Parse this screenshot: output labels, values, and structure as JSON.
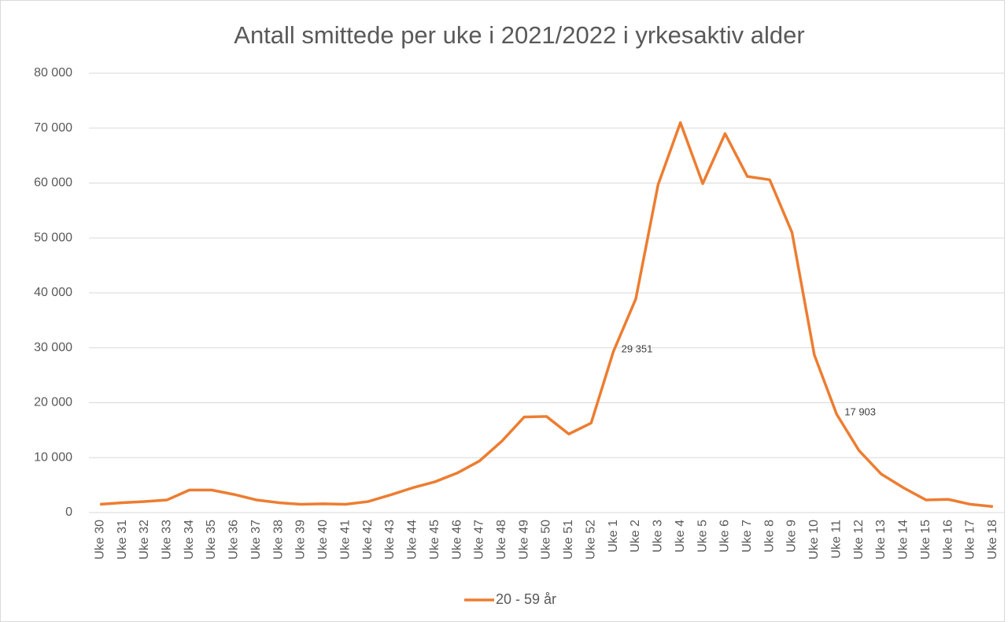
{
  "chart_data": {
    "type": "line",
    "title": "Antall smittede per uke i 2021/2022 i yrkesaktiv alder",
    "categories": [
      "Uke 30",
      "Uke 31",
      "Uke 32",
      "Uke 33",
      "Uke 34",
      "Uke 35",
      "Uke 36",
      "Uke 37",
      "Uke 38",
      "Uke 39",
      "Uke 40",
      "Uke 41",
      "Uke 42",
      "Uke 43",
      "Uke 44",
      "Uke 45",
      "Uke 46",
      "Uke 47",
      "Uke 48",
      "Uke 49",
      "Uke 50",
      "Uke 51",
      "Uke 52",
      "Uke 1",
      "Uke 2",
      "Uke 3",
      "Uke 4",
      "Uke 5",
      "Uke 6",
      "Uke 7",
      "Uke 8",
      "Uke 9",
      "Uke 10",
      "Uke 11",
      "Uke 12",
      "Uke 13",
      "Uke 14",
      "Uke 15",
      "Uke 16",
      "Uke 17",
      "Uke 18"
    ],
    "series": [
      {
        "name": "20 - 59 år",
        "color": "#ed7d31",
        "values": [
          1500,
          1800,
          2000,
          2300,
          4100,
          4100,
          3300,
          2300,
          1800,
          1500,
          1600,
          1500,
          2000,
          3200,
          4500,
          5600,
          7200,
          9400,
          13000,
          17400,
          17500,
          14300,
          16300,
          29351,
          38900,
          59700,
          71000,
          59900,
          69000,
          61200,
          60600,
          51000,
          28700,
          17903,
          11300,
          7000,
          4500,
          2300,
          2400,
          1500,
          1100
        ],
        "value_labels": [
          null,
          null,
          null,
          null,
          null,
          null,
          null,
          null,
          null,
          null,
          null,
          null,
          null,
          null,
          null,
          null,
          null,
          null,
          null,
          null,
          null,
          null,
          null,
          "29 351",
          null,
          null,
          null,
          null,
          null,
          null,
          null,
          null,
          null,
          "17 903",
          null,
          null,
          null,
          null,
          null,
          null,
          null
        ]
      }
    ],
    "ylim": [
      0,
      80000
    ],
    "yticks": [
      0,
      {
        "value": 10000,
        "label": "10 000"
      },
      {
        "value": 20000,
        "label": "20 000"
      },
      {
        "value": 30000,
        "label": "30 000"
      },
      {
        "value": 40000,
        "label": "40 000"
      },
      {
        "value": 50000,
        "label": "50 000"
      },
      {
        "value": 60000,
        "label": "60 000"
      },
      {
        "value": 70000,
        "label": "70 000"
      },
      {
        "value": 80000,
        "label": "80 000"
      }
    ],
    "grid": true,
    "legend": "bottom"
  }
}
